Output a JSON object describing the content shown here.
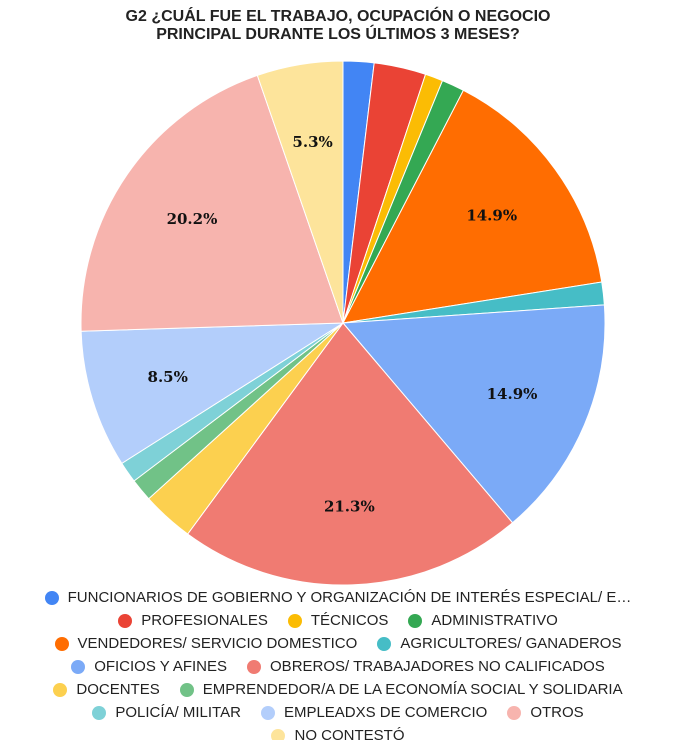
{
  "chart_data": {
    "type": "pie",
    "title": "G2 ¿CUÁL FUE EL TRABAJO, OCUPACIÓN O NEGOCIO PRINCIPAL DURANTE LOS ÚLTIMOS 3 MESES?",
    "categories": [
      "FUNCIONARIOS DE GOBIERNO Y ORGANIZACIÓN DE INTERÉS ESPECIAL/ E…",
      "PROFESIONALES",
      "TÉCNICOS",
      "ADMINISTRATIVO",
      "VENDEDORES/ SERVICIO DOMESTICO",
      "AGRICULTORES/ GANADEROS",
      "OFICIOS Y AFINES",
      "OBREROS/ TRABAJADORES NO CALIFICADOS",
      "DOCENTES",
      "EMPRENDEDOR/A DE LA ECONOMÍA SOCIAL Y SOLIDARIA",
      "POLICÍA/ MILITAR",
      "EMPLEADXS DE COMERCIO",
      "OTROS",
      "NO CONTESTÓ"
    ],
    "values": [
      1.9,
      3.2,
      1.1,
      1.4,
      14.9,
      1.4,
      14.9,
      21.3,
      3.2,
      1.4,
      1.3,
      8.5,
      20.2,
      5.3
    ],
    "value_labels": [
      null,
      null,
      null,
      null,
      "14.9%",
      null,
      "14.9%",
      "21.3%",
      null,
      null,
      null,
      "8.5%",
      "20.2%",
      "5.3%"
    ],
    "colors": [
      "#4285f4",
      "#ea4335",
      "#fbbc04",
      "#34a853",
      "#ff6d01",
      "#46bdc6",
      "#7baaf7",
      "#f07b72",
      "#fcd04f",
      "#71c287",
      "#7ed1d7",
      "#b3cefb",
      "#f7b4ae",
      "#fde49b"
    ]
  }
}
